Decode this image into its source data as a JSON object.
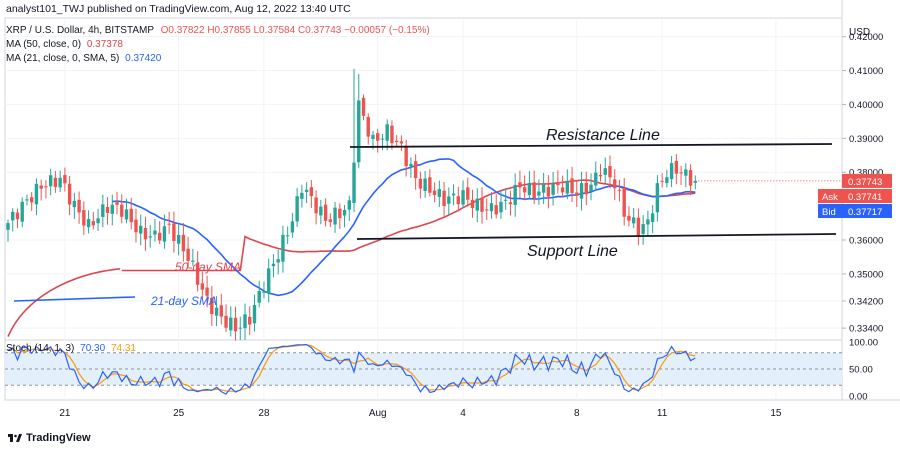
{
  "header": {
    "publisher": "analyst101_TWJ published on TradingView.com, Aug 12, 2022 13:40 UTC",
    "symbol": "XRP / U.S. Dollar, 4h, BITSTAMP",
    "ohlc": "O0.37822  H0.37855  L0.37584  C0.37743  −0.00057 (−0.15%)",
    "ma50_label": "MA (50, close, 0)",
    "ma50_value": "0.37378",
    "ma21_label": "MA (21, close, 0, SMA, 5)",
    "ma21_value": "0.37420"
  },
  "footer": {
    "brand": "TradingView"
  },
  "colors": {
    "up": "#26a69a",
    "down": "#ef5350",
    "ma50": "#e0454f",
    "ma21": "#2962ff",
    "stoch_k": "#2962ff",
    "stoch_d": "#ff9800",
    "stoch_band": "#e3f0fc"
  },
  "chart_data": {
    "type": "candlestick",
    "currency": "USD",
    "price_axis": {
      "ticks": [
        "0.42000",
        "0.41000",
        "0.40000",
        "0.39000",
        "0.38000",
        "0.36000",
        "0.35000",
        "0.34200",
        "0.33400"
      ],
      "tick_values": [
        0.42,
        0.41,
        0.4,
        0.39,
        0.38,
        0.36,
        0.35,
        0.342,
        0.334
      ],
      "range": [
        0.3305,
        0.4255
      ]
    },
    "x_axis": {
      "ticks": [
        "21",
        "25",
        "28",
        "Aug",
        "4",
        "8",
        "11",
        "15"
      ],
      "tick_index": [
        12,
        36,
        54,
        78,
        96,
        120,
        138,
        162
      ]
    },
    "price_labels": [
      {
        "label": "",
        "value": "0.37743",
        "color": "#ef5350"
      },
      {
        "label": "Ask",
        "value": "0.37741",
        "color": "#ef5350"
      },
      {
        "label": "Bid",
        "value": "0.37717",
        "color": "#2962ff"
      }
    ],
    "annotations": {
      "resistance_label": "Resistance Line",
      "support_label": "Support Line",
      "ma50_label": "50-day SMA",
      "ma21_label": "21-day SMA"
    },
    "stoch": {
      "label": "Stoch (14, 1, 3)",
      "k_value": "70.30",
      "d_value": "74.31",
      "ticks": [
        "100.00",
        "50.00",
        "0.00"
      ],
      "tick_values": [
        100,
        50,
        0
      ],
      "upper_band": 80,
      "lower_band": 20
    }
  }
}
